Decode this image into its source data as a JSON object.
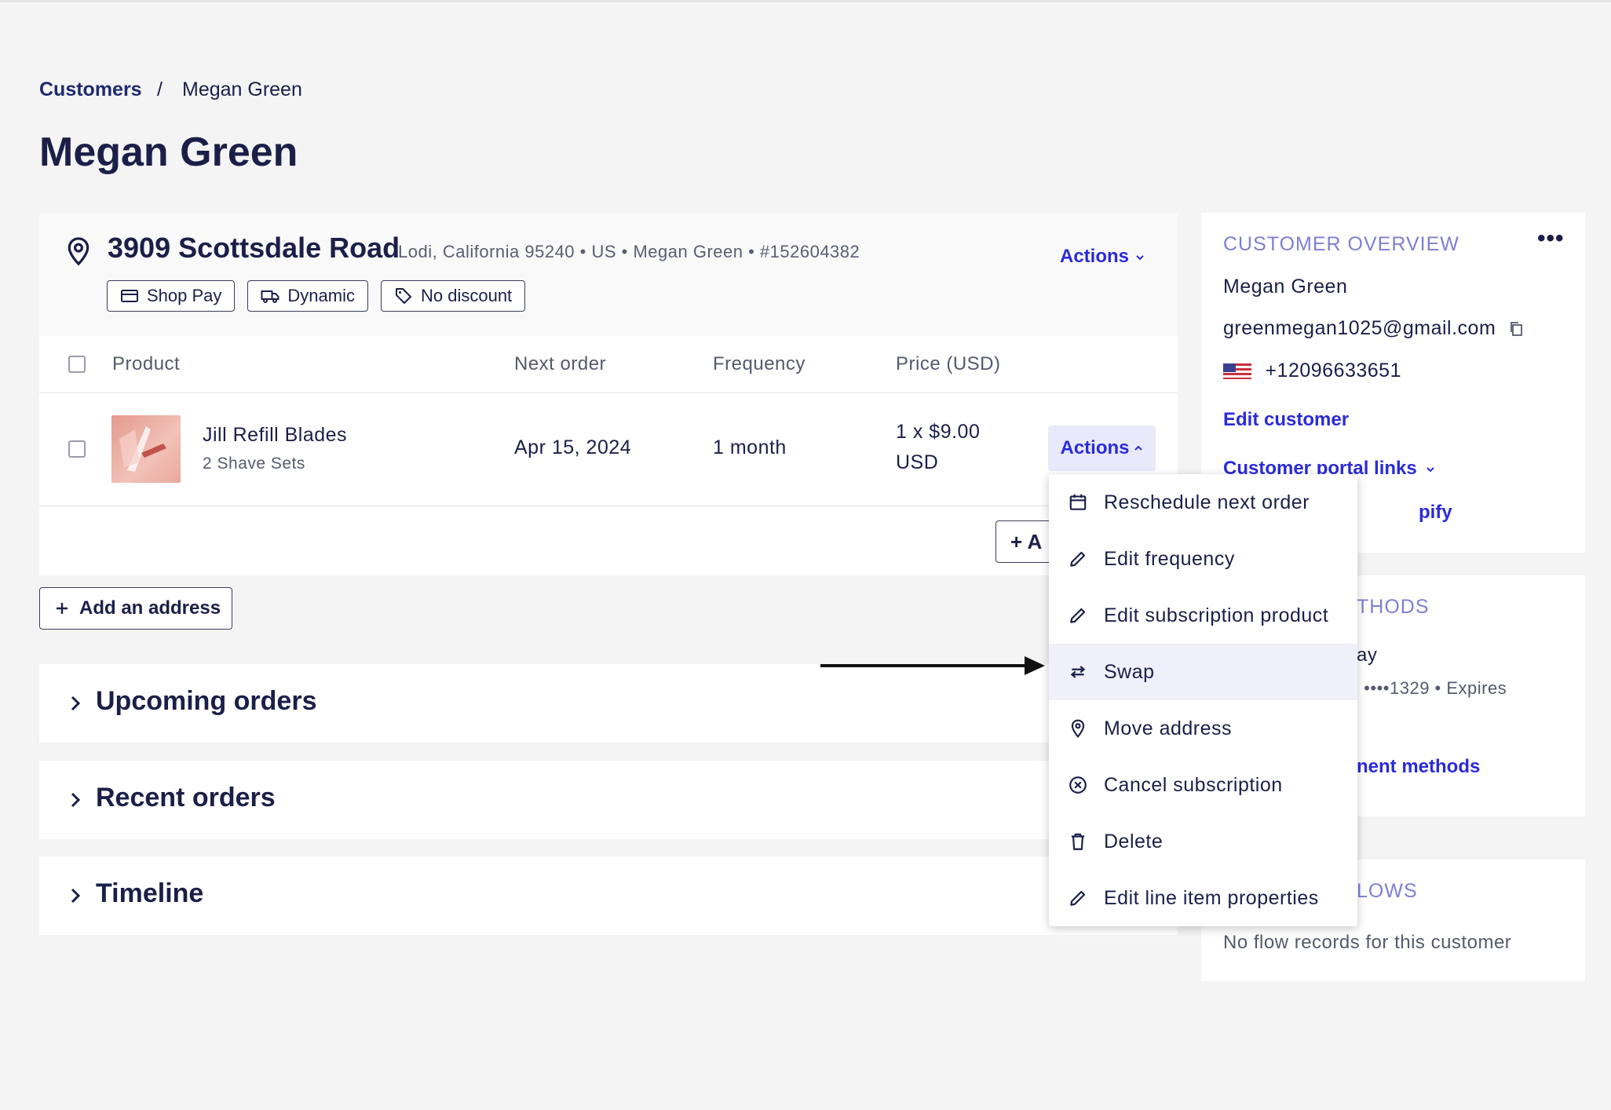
{
  "breadcrumb": {
    "parent": "Customers",
    "separator": "/",
    "current": "Megan Green"
  },
  "page_title": "Megan Green",
  "address_card": {
    "street": "3909 Scottsdale Road",
    "meta": "Lodi, California 95240  •  US  •  Megan Green  •  #152604382",
    "actions_label": "Actions",
    "chips": [
      {
        "label": "Shop Pay",
        "icon": "credit-card-icon"
      },
      {
        "label": "Dynamic",
        "icon": "truck-icon"
      },
      {
        "label": "No discount",
        "icon": "tag-icon"
      }
    ],
    "table": {
      "headers": {
        "product": "Product",
        "next_order": "Next order",
        "frequency": "Frequency",
        "price": "Price (USD)"
      },
      "rows": [
        {
          "name": "Jill Refill Blades",
          "sub": "2 Shave Sets",
          "next_order": "Apr 15, 2024",
          "frequency": "1 month",
          "price_line1": "1 x $9.00",
          "price_line2": "USD",
          "actions_label": "Actions"
        }
      ]
    },
    "add_product_label": "+ A"
  },
  "add_address_label": "Add an address",
  "sections": [
    {
      "title": "Upcoming orders"
    },
    {
      "title": "Recent orders"
    },
    {
      "title": "Timeline"
    }
  ],
  "overview": {
    "title": "CUSTOMER OVERVIEW",
    "more": "•••",
    "name": "Megan Green",
    "email": "greenmegan1025@gmail.com",
    "phone": "+12096633651",
    "edit_customer": "Edit customer",
    "portal_links": "Customer portal links",
    "shopify_partial": "pify"
  },
  "payment": {
    "title_partial": "THODS",
    "line1_partial": "ay",
    "line2_partial": "rd ••••1329 • Expires",
    "link_partial": "nent methods"
  },
  "flows": {
    "title_partial": "LOWS",
    "empty": "No flow records for this customer"
  },
  "menu": {
    "items": [
      {
        "label": "Reschedule next order",
        "icon": "calendar-icon"
      },
      {
        "label": "Edit frequency",
        "icon": "pencil-icon"
      },
      {
        "label": "Edit subscription product",
        "icon": "pencil-icon"
      },
      {
        "label": "Swap",
        "icon": "swap-icon"
      },
      {
        "label": "Move address",
        "icon": "map-pin-icon"
      },
      {
        "label": "Cancel subscription",
        "icon": "cancel-circle-icon"
      },
      {
        "label": "Delete",
        "icon": "trash-icon"
      },
      {
        "label": "Edit line item properties",
        "icon": "pencil-icon"
      }
    ]
  },
  "colors": {
    "accent": "#2a2bd8",
    "heading": "#1b1f48",
    "overview_title": "#7e7fd0",
    "highlight": "#f0f0fb"
  }
}
